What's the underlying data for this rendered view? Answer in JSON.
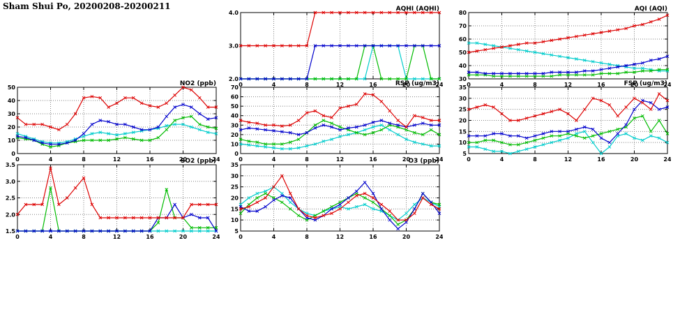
{
  "page_title": "Sham Shui Po, 20200208-20200211",
  "colors": {
    "red": "#dd0000",
    "blue": "#0000cc",
    "green": "#00bb00",
    "cyan": "#00cccc",
    "grid": "#808080",
    "axis": "#000000"
  },
  "hours": [
    0,
    1,
    2,
    3,
    4,
    5,
    6,
    7,
    8,
    9,
    10,
    11,
    12,
    13,
    14,
    15,
    16,
    17,
    18,
    19,
    20,
    21,
    22,
    23,
    24
  ],
  "x_axis": {
    "min": 0,
    "max": 24,
    "ticks": [
      0,
      4,
      8,
      12,
      16,
      20,
      24
    ],
    "tick_labels": [
      "0",
      "4",
      "8",
      "12",
      "16",
      "20",
      "24"
    ]
  },
  "chart_data": [
    {
      "id": "aqhi",
      "type": "line",
      "title": "AQHI (AQHI)",
      "ylim": [
        2,
        4
      ],
      "yticks": [
        2,
        3,
        4
      ],
      "ytick_labels": [
        "2.0",
        "3.0",
        "4.0"
      ],
      "series": [
        {
          "name": "cyan",
          "values": [
            2,
            2,
            2,
            2,
            2,
            2,
            2,
            2,
            2,
            2,
            2,
            2,
            2,
            2,
            2,
            2,
            3,
            3,
            3,
            3,
            2,
            2,
            2,
            2,
            2
          ]
        },
        {
          "name": "green",
          "values": [
            2,
            2,
            2,
            2,
            2,
            2,
            2,
            2,
            2,
            2,
            2,
            2,
            2,
            2,
            2,
            3,
            3,
            2,
            2,
            2,
            2,
            3,
            3,
            2,
            2
          ]
        },
        {
          "name": "blue",
          "values": [
            2,
            2,
            2,
            2,
            2,
            2,
            2,
            2,
            2,
            3,
            3,
            3,
            3,
            3,
            3,
            3,
            3,
            3,
            3,
            3,
            3,
            3,
            3,
            3,
            3
          ]
        },
        {
          "name": "red",
          "values": [
            3,
            3,
            3,
            3,
            3,
            3,
            3,
            3,
            3,
            4,
            4,
            4,
            4,
            4,
            4,
            4,
            4,
            4,
            4,
            4,
            4,
            4,
            4,
            4,
            4
          ]
        }
      ]
    },
    {
      "id": "aqi",
      "type": "line",
      "title": "AQI (AQI)",
      "ylim": [
        30,
        80
      ],
      "yticks": [
        30,
        40,
        50,
        60,
        70,
        80
      ],
      "ytick_labels": [
        "30",
        "40",
        "50",
        "60",
        "70",
        "80"
      ],
      "series": [
        {
          "name": "cyan",
          "values": [
            57,
            57,
            56,
            55,
            54,
            53,
            52,
            51,
            50,
            49,
            48,
            47,
            46,
            45,
            44,
            43,
            42,
            41,
            40,
            39,
            38,
            38,
            37,
            36,
            36
          ]
        },
        {
          "name": "green",
          "values": [
            33,
            33,
            33,
            32,
            32,
            32,
            32,
            32,
            32,
            32,
            32,
            33,
            33,
            33,
            33,
            33,
            34,
            34,
            34,
            35,
            35,
            36,
            36,
            37,
            37
          ]
        },
        {
          "name": "blue",
          "values": [
            35,
            35,
            34,
            34,
            34,
            34,
            34,
            34,
            34,
            34,
            35,
            35,
            35,
            35,
            36,
            36,
            37,
            38,
            39,
            40,
            41,
            42,
            44,
            45,
            47
          ]
        },
        {
          "name": "red",
          "values": [
            50,
            51,
            52,
            53,
            54,
            55,
            56,
            57,
            57,
            58,
            59,
            60,
            61,
            62,
            63,
            64,
            65,
            66,
            67,
            68,
            70,
            71,
            73,
            75,
            78
          ]
        }
      ]
    },
    {
      "id": "no2",
      "type": "line",
      "title": "NO2 (ppb)",
      "ylim": [
        0,
        50
      ],
      "yticks": [
        0,
        10,
        20,
        30,
        40,
        50
      ],
      "ytick_labels": [
        "0",
        "10",
        "20",
        "30",
        "40",
        "50"
      ],
      "series": [
        {
          "name": "cyan",
          "values": [
            15,
            13,
            11,
            9,
            8,
            8,
            9,
            11,
            13,
            15,
            16,
            15,
            14,
            15,
            16,
            17,
            18,
            19,
            21,
            22,
            22,
            20,
            18,
            16,
            15
          ]
        },
        {
          "name": "green",
          "values": [
            12,
            11,
            10,
            7,
            5,
            6,
            8,
            9,
            10,
            10,
            10,
            10,
            11,
            12,
            11,
            10,
            10,
            12,
            18,
            25,
            27,
            28,
            22,
            20,
            19
          ]
        },
        {
          "name": "blue",
          "values": [
            13,
            12,
            10,
            8,
            7,
            7,
            8,
            10,
            15,
            22,
            25,
            24,
            22,
            22,
            20,
            18,
            18,
            20,
            28,
            35,
            37,
            35,
            30,
            26,
            27
          ]
        },
        {
          "name": "red",
          "values": [
            27,
            22,
            22,
            22,
            20,
            18,
            22,
            30,
            42,
            43,
            42,
            35,
            38,
            42,
            42,
            38,
            36,
            35,
            38,
            44,
            50,
            48,
            42,
            35,
            35
          ]
        }
      ]
    },
    {
      "id": "rsp",
      "type": "line",
      "title": "RSP (ug/m3)",
      "ylim": [
        0,
        70
      ],
      "yticks": [
        0,
        10,
        20,
        30,
        40,
        50,
        60,
        70
      ],
      "ytick_labels": [
        "0",
        "10",
        "20",
        "30",
        "40",
        "50",
        "60",
        "70"
      ],
      "series": [
        {
          "name": "cyan",
          "values": [
            10,
            9,
            8,
            7,
            6,
            5,
            5,
            6,
            8,
            10,
            13,
            15,
            18,
            20,
            22,
            25,
            28,
            30,
            25,
            20,
            15,
            12,
            10,
            8,
            8
          ]
        },
        {
          "name": "green",
          "values": [
            15,
            13,
            12,
            10,
            10,
            10,
            12,
            15,
            22,
            30,
            35,
            32,
            28,
            25,
            22,
            20,
            22,
            25,
            30,
            28,
            25,
            22,
            20,
            25,
            20
          ]
        },
        {
          "name": "blue",
          "values": [
            25,
            27,
            26,
            25,
            24,
            23,
            22,
            20,
            22,
            27,
            30,
            28,
            25,
            27,
            28,
            30,
            33,
            35,
            32,
            30,
            28,
            30,
            32,
            30,
            30
          ]
        },
        {
          "name": "red",
          "values": [
            35,
            33,
            32,
            30,
            30,
            29,
            30,
            35,
            43,
            45,
            40,
            38,
            48,
            50,
            52,
            63,
            62,
            55,
            45,
            35,
            28,
            40,
            38,
            35,
            35
          ]
        }
      ]
    },
    {
      "id": "fsp",
      "type": "line",
      "title": "FSP (ug/m3)",
      "ylim": [
        5,
        35
      ],
      "yticks": [
        5,
        10,
        15,
        20,
        25,
        30,
        35
      ],
      "ytick_labels": [
        "5",
        "10",
        "15",
        "20",
        "25",
        "30",
        "35"
      ],
      "series": [
        {
          "name": "cyan",
          "values": [
            8,
            8,
            7,
            6,
            6,
            5,
            6,
            7,
            8,
            9,
            10,
            11,
            12,
            14,
            15,
            10,
            5,
            8,
            13,
            14,
            12,
            11,
            13,
            12,
            10
          ]
        },
        {
          "name": "green",
          "values": [
            10,
            10,
            11,
            11,
            10,
            9,
            9,
            10,
            11,
            12,
            13,
            13,
            14,
            13,
            12,
            13,
            14,
            15,
            16,
            17,
            21,
            22,
            15,
            20,
            14
          ]
        },
        {
          "name": "blue",
          "values": [
            13,
            13,
            13,
            14,
            14,
            13,
            13,
            12,
            13,
            14,
            15,
            15,
            15,
            16,
            17,
            16,
            12,
            10,
            14,
            18,
            25,
            29,
            28,
            25,
            26
          ]
        },
        {
          "name": "red",
          "values": [
            25,
            26,
            27,
            26,
            23,
            20,
            20,
            21,
            22,
            23,
            24,
            25,
            23,
            20,
            25,
            30,
            29,
            27,
            22,
            26,
            30,
            28,
            25,
            32,
            29
          ]
        }
      ]
    },
    {
      "id": "so2",
      "type": "line",
      "title": "SO2 (ppb)",
      "ylim": [
        1.5,
        3.5
      ],
      "yticks": [
        1.5,
        2.0,
        2.5,
        3.0,
        3.5
      ],
      "ytick_labels": [
        "1.5",
        "2.0",
        "2.5",
        "3.0",
        "3.5"
      ],
      "series": [
        {
          "name": "cyan",
          "values": [
            1.5,
            1.5,
            1.5,
            1.5,
            1.5,
            1.5,
            1.5,
            1.5,
            1.5,
            1.5,
            1.5,
            1.5,
            1.5,
            1.5,
            1.5,
            1.5,
            1.5,
            1.5,
            1.5,
            1.5,
            1.5,
            1.5,
            1.5,
            1.5,
            1.5
          ]
        },
        {
          "name": "green",
          "values": [
            1.5,
            1.5,
            1.5,
            1.5,
            2.8,
            1.5,
            1.5,
            1.5,
            1.5,
            1.5,
            1.5,
            1.5,
            1.5,
            1.5,
            1.5,
            1.5,
            1.5,
            1.75,
            2.75,
            1.9,
            1.9,
            1.6,
            1.6,
            1.6,
            1.6
          ]
        },
        {
          "name": "blue",
          "values": [
            1.5,
            1.5,
            1.5,
            1.5,
            1.5,
            1.5,
            1.5,
            1.5,
            1.5,
            1.5,
            1.5,
            1.5,
            1.5,
            1.5,
            1.5,
            1.5,
            1.5,
            1.9,
            1.9,
            2.3,
            1.9,
            2.0,
            1.9,
            1.9,
            1.5
          ]
        },
        {
          "name": "red",
          "values": [
            2.0,
            2.3,
            2.3,
            2.3,
            3.4,
            2.3,
            2.5,
            2.8,
            3.1,
            2.3,
            1.9,
            1.9,
            1.9,
            1.9,
            1.9,
            1.9,
            1.9,
            1.9,
            1.9,
            1.9,
            1.9,
            2.3,
            2.3,
            2.3,
            2.3
          ]
        }
      ]
    },
    {
      "id": "o3",
      "type": "line",
      "title": "O3 (ppb)",
      "ylim": [
        5,
        35
      ],
      "yticks": [
        5,
        10,
        15,
        20,
        25,
        30,
        35
      ],
      "ytick_labels": [
        "5",
        "10",
        "15",
        "20",
        "25",
        "30",
        "35"
      ],
      "series": [
        {
          "name": "cyan",
          "values": [
            17,
            20,
            22,
            23,
            25,
            22,
            18,
            15,
            13,
            12,
            14,
            15,
            16,
            15,
            16,
            17,
            15,
            14,
            12,
            10,
            13,
            17,
            20,
            18,
            16
          ]
        },
        {
          "name": "green",
          "values": [
            13,
            17,
            20,
            22,
            20,
            18,
            15,
            12,
            10,
            12,
            14,
            16,
            18,
            20,
            22,
            20,
            18,
            15,
            12,
            8,
            10,
            15,
            22,
            18,
            17
          ]
        },
        {
          "name": "blue",
          "values": [
            16,
            14,
            14,
            16,
            19,
            21,
            20,
            15,
            11,
            10,
            12,
            15,
            17,
            20,
            23,
            27,
            22,
            15,
            10,
            6,
            9,
            15,
            22,
            18,
            13
          ]
        },
        {
          "name": "red",
          "values": [
            15,
            16,
            18,
            20,
            25,
            30,
            22,
            15,
            12,
            11,
            12,
            13,
            15,
            18,
            21,
            22,
            20,
            17,
            14,
            10,
            10,
            13,
            20,
            17,
            15
          ]
        }
      ]
    }
  ]
}
